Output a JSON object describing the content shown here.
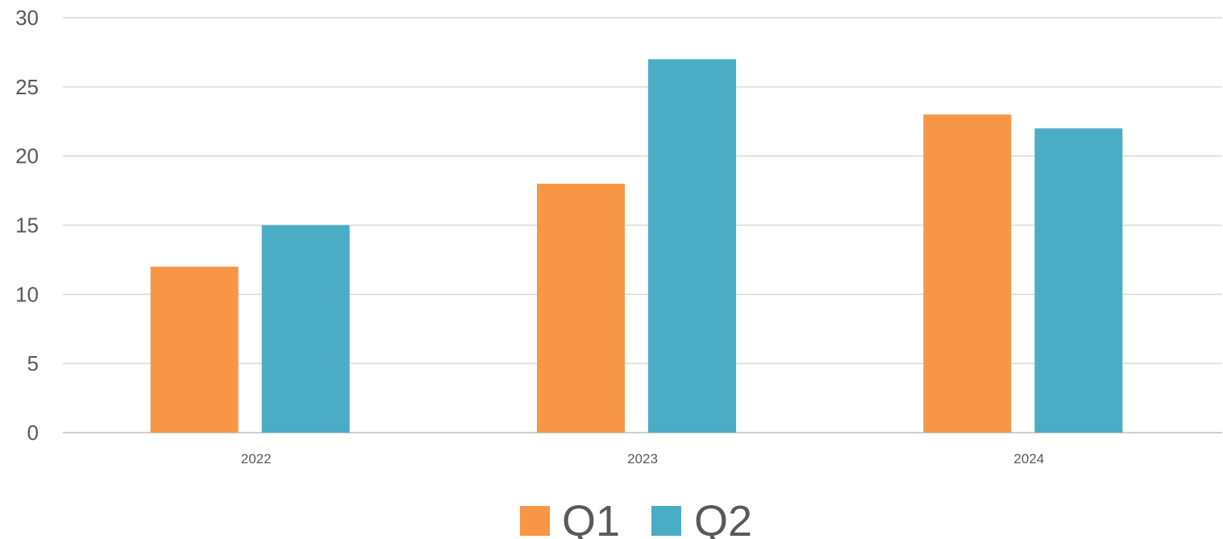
{
  "chart_data": {
    "type": "bar",
    "title": "",
    "xlabel": "",
    "ylabel": "",
    "categories": [
      "2022",
      "2023",
      "2024"
    ],
    "series": [
      {
        "name": "Q1",
        "color": "#f79646",
        "values": [
          12,
          18,
          23
        ]
      },
      {
        "name": "Q2",
        "color": "#4bacc6",
        "values": [
          15,
          27,
          22
        ]
      }
    ],
    "ylim": [
      0,
      30
    ],
    "yticks": [
      "0",
      "5",
      "10",
      "15",
      "20",
      "25",
      "30"
    ],
    "grid": true,
    "legend_position": "bottom"
  }
}
